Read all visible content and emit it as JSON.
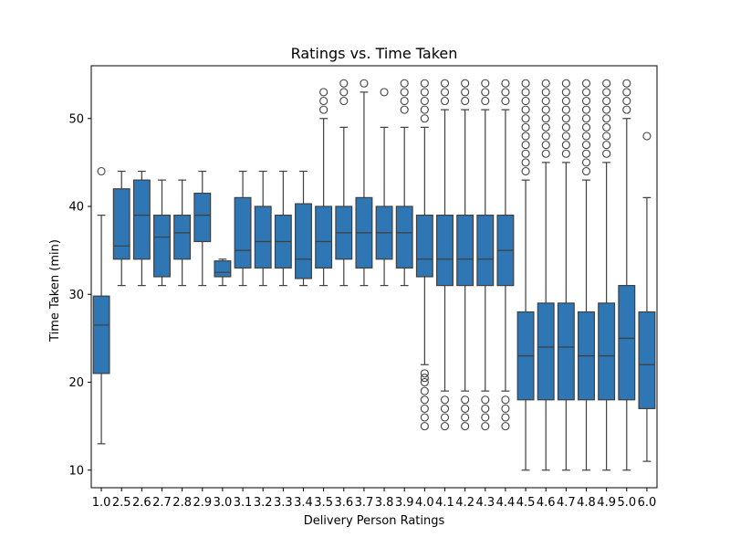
{
  "chart_data": {
    "type": "box",
    "title": "Ratings vs. Time Taken",
    "xlabel": "Delivery Person Ratings",
    "ylabel": "Time Taken (min)",
    "yticks": [
      10,
      20,
      30,
      40,
      50
    ],
    "ylim": [
      8,
      56
    ],
    "box_color": "#2f77b4",
    "line_color": "#3f3f3f",
    "categories": [
      "1.0",
      "2.5",
      "2.6",
      "2.7",
      "2.8",
      "2.9",
      "3.0",
      "3.1",
      "3.2",
      "3.3",
      "3.4",
      "3.5",
      "3.6",
      "3.7",
      "3.8",
      "3.9",
      "4.0",
      "4.1",
      "4.2",
      "4.3",
      "4.4",
      "4.5",
      "4.6",
      "4.7",
      "4.8",
      "4.9",
      "5.0",
      "6.0"
    ],
    "boxes": [
      {
        "category": "1.0",
        "whislo": 13,
        "q1": 21,
        "med": 26.5,
        "q3": 29.8,
        "whishi": 39,
        "fliers": [
          44
        ]
      },
      {
        "category": "2.5",
        "whislo": 31,
        "q1": 34,
        "med": 35.5,
        "q3": 42,
        "whishi": 44,
        "fliers": []
      },
      {
        "category": "2.6",
        "whislo": 31,
        "q1": 34,
        "med": 39,
        "q3": 43,
        "whishi": 44,
        "fliers": []
      },
      {
        "category": "2.7",
        "whislo": 31,
        "q1": 32,
        "med": 36.5,
        "q3": 39,
        "whishi": 43,
        "fliers": []
      },
      {
        "category": "2.8",
        "whislo": 31,
        "q1": 34,
        "med": 37,
        "q3": 39,
        "whishi": 43,
        "fliers": []
      },
      {
        "category": "2.9",
        "whislo": 31,
        "q1": 36,
        "med": 39,
        "q3": 41.5,
        "whishi": 44,
        "fliers": []
      },
      {
        "category": "3.0",
        "whislo": 31,
        "q1": 32,
        "med": 32.5,
        "q3": 33.8,
        "whishi": 34,
        "fliers": []
      },
      {
        "category": "3.1",
        "whislo": 31,
        "q1": 33,
        "med": 35,
        "q3": 41,
        "whishi": 44,
        "fliers": []
      },
      {
        "category": "3.2",
        "whislo": 31,
        "q1": 33,
        "med": 36,
        "q3": 40,
        "whishi": 44,
        "fliers": []
      },
      {
        "category": "3.3",
        "whislo": 31,
        "q1": 33,
        "med": 36,
        "q3": 39,
        "whishi": 44,
        "fliers": []
      },
      {
        "category": "3.4",
        "whislo": 31,
        "q1": 31.8,
        "med": 34,
        "q3": 40.3,
        "whishi": 44,
        "fliers": []
      },
      {
        "category": "3.5",
        "whislo": 31,
        "q1": 33,
        "med": 36,
        "q3": 40,
        "whishi": 50,
        "fliers": [
          51,
          52,
          53
        ]
      },
      {
        "category": "3.6",
        "whislo": 31,
        "q1": 34,
        "med": 37,
        "q3": 40,
        "whishi": 49,
        "fliers": [
          52,
          53,
          54
        ]
      },
      {
        "category": "3.7",
        "whislo": 31,
        "q1": 33,
        "med": 37,
        "q3": 41,
        "whishi": 53,
        "fliers": [
          54
        ]
      },
      {
        "category": "3.8",
        "whislo": 31,
        "q1": 34,
        "med": 37,
        "q3": 40,
        "whishi": 49,
        "fliers": [
          53
        ]
      },
      {
        "category": "3.9",
        "whislo": 31,
        "q1": 33,
        "med": 37,
        "q3": 40,
        "whishi": 49,
        "fliers": [
          51,
          52,
          53,
          54
        ]
      },
      {
        "category": "4.0",
        "whislo": 22,
        "q1": 32,
        "med": 34,
        "q3": 39,
        "whishi": 49,
        "fliers": [
          15,
          16,
          17,
          18,
          19,
          20,
          20.5,
          21,
          50,
          51,
          52,
          53,
          54
        ]
      },
      {
        "category": "4.1",
        "whislo": 19,
        "q1": 31,
        "med": 34,
        "q3": 39,
        "whishi": 51,
        "fliers": [
          15,
          16,
          17,
          18,
          52,
          53,
          54
        ]
      },
      {
        "category": "4.2",
        "whislo": 19,
        "q1": 31,
        "med": 34,
        "q3": 39,
        "whishi": 51,
        "fliers": [
          15,
          16,
          17,
          18,
          52,
          53,
          54
        ]
      },
      {
        "category": "4.3",
        "whislo": 19,
        "q1": 31,
        "med": 34,
        "q3": 39,
        "whishi": 51,
        "fliers": [
          15,
          16,
          17,
          18,
          52,
          53,
          54
        ]
      },
      {
        "category": "4.4",
        "whislo": 19,
        "q1": 31,
        "med": 35,
        "q3": 39,
        "whishi": 51,
        "fliers": [
          15,
          16,
          17,
          18,
          52,
          53,
          54
        ]
      },
      {
        "category": "4.5",
        "whislo": 10,
        "q1": 18,
        "med": 23,
        "q3": 28,
        "whishi": 43,
        "fliers": [
          44,
          45,
          46,
          47,
          48,
          49,
          50,
          51,
          52,
          53,
          54
        ]
      },
      {
        "category": "4.6",
        "whislo": 10,
        "q1": 18,
        "med": 24,
        "q3": 29,
        "whishi": 45,
        "fliers": [
          46,
          47,
          48,
          49,
          50,
          51,
          52,
          53,
          54
        ]
      },
      {
        "category": "4.7",
        "whislo": 10,
        "q1": 18,
        "med": 24,
        "q3": 29,
        "whishi": 45,
        "fliers": [
          46,
          47,
          48,
          49,
          50,
          51,
          52,
          53,
          54
        ]
      },
      {
        "category": "4.8",
        "whislo": 10,
        "q1": 18,
        "med": 23,
        "q3": 28,
        "whishi": 43,
        "fliers": [
          44,
          45,
          46,
          47,
          48,
          49,
          50,
          51,
          52,
          53,
          54
        ]
      },
      {
        "category": "4.9",
        "whislo": 10,
        "q1": 18,
        "med": 23,
        "q3": 29,
        "whishi": 45,
        "fliers": [
          46,
          47,
          48,
          49,
          50,
          51,
          52,
          53,
          54
        ]
      },
      {
        "category": "5.0",
        "whislo": 10,
        "q1": 18,
        "med": 25,
        "q3": 31,
        "whishi": 50,
        "fliers": [
          51,
          52,
          53,
          54
        ]
      },
      {
        "category": "6.0",
        "whislo": 11,
        "q1": 17,
        "med": 22,
        "q3": 28,
        "whishi": 41,
        "fliers": [
          48
        ]
      }
    ]
  }
}
